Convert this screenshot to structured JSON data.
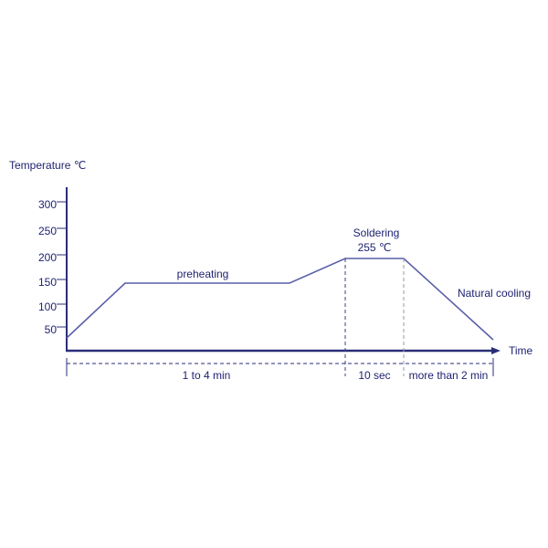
{
  "axis": {
    "y_title": "Temperature ℃",
    "x_title": "Time",
    "y_ticks": [
      "300",
      "250",
      "200",
      "150",
      "100",
      "50"
    ]
  },
  "labels": {
    "preheating": "preheating",
    "soldering": "Soldering",
    "peak": "255 ℃",
    "cooling": "Natural cooling"
  },
  "durations": [
    "1 to 4 min",
    "10 sec",
    "more than 2 min"
  ]
}
